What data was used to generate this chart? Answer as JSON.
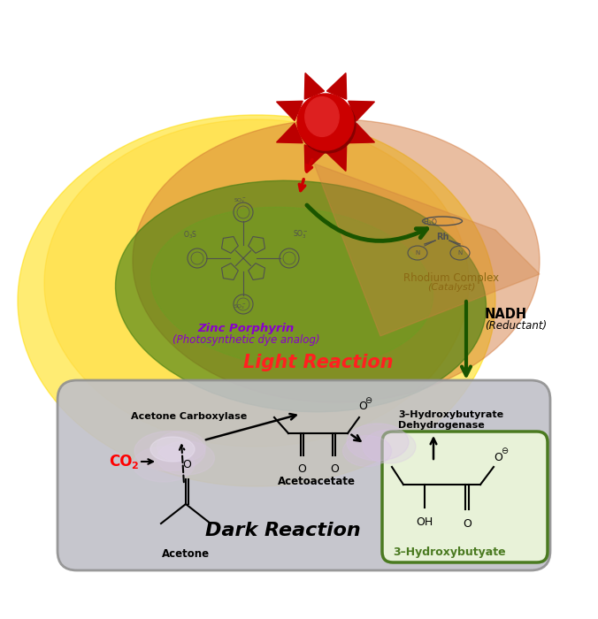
{
  "bg_color": "#ffffff",
  "fig_width": 6.76,
  "fig_height": 7.0,
  "dpi": 100,
  "labels": {
    "zinc_porphyrin_1": "Zinc Porphyrin",
    "zinc_porphyrin_2": "(Photosynthetic dye analog)",
    "zinc_color": "#8800cc",
    "rhodium_1": "Rhodium Complex",
    "rhodium_2": "(Catalyst)",
    "rhodium_color": "#8B6914",
    "light_reaction": "Light Reaction",
    "light_reaction_color": "#ff2020",
    "nadh_1": "NADH",
    "nadh_2": "(Reductant)",
    "nadh_color": "#000000",
    "acetone_carboxylase": "Acetone Carboxylase",
    "co2": "CO",
    "co2_color": "#ff0000",
    "acetone": "Acetone",
    "acetoacetate": "Acetoacetate",
    "dark_reaction": "Dark Reaction",
    "dark_reaction_color": "#000000",
    "hydroxybutyrate_enzyme_1": "3–Hydroxybutyrate",
    "hydroxybutyrate_enzyme_2": "Dehydrogenase",
    "product_label": "3–Hydroxybutyate",
    "product_color": "#4a7a20"
  }
}
